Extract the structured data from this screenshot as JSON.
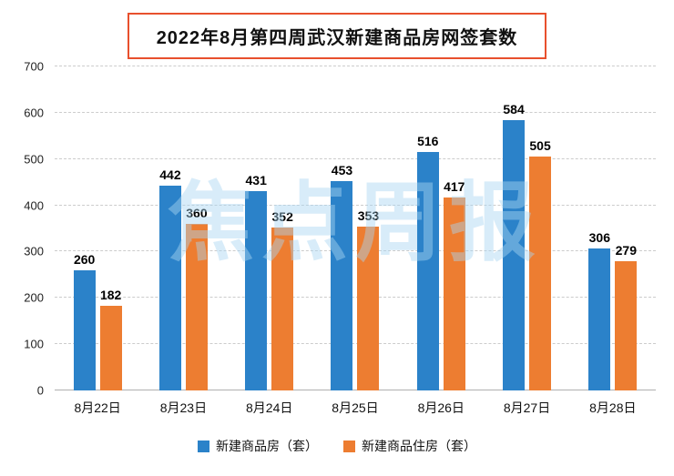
{
  "title": "2022年8月第四周武汉新建商品房网签套数",
  "watermark": "焦点周报",
  "colors": {
    "series1": "#2b82c9",
    "series2": "#ed7d31",
    "title_border": "#e8502d"
  },
  "chart_data": {
    "type": "bar",
    "title": "2022年8月第四周武汉新建商品房网签套数",
    "categories": [
      "8月22日",
      "8月23日",
      "8月24日",
      "8月25日",
      "8月26日",
      "8月27日",
      "8月28日"
    ],
    "series": [
      {
        "name": "新建商品房（套）",
        "color": "#2b82c9",
        "values": [
          260,
          442,
          431,
          453,
          516,
          584,
          306
        ]
      },
      {
        "name": "新建商品住房（套）",
        "color": "#ed7d31",
        "values": [
          182,
          360,
          352,
          353,
          417,
          505,
          279
        ]
      }
    ],
    "xlabel": "",
    "ylabel": "",
    "ylim": [
      0,
      700
    ],
    "yticks": [
      0,
      100,
      200,
      300,
      400,
      500,
      600,
      700
    ],
    "grid": "dashed-horizontal",
    "legend_position": "bottom"
  }
}
